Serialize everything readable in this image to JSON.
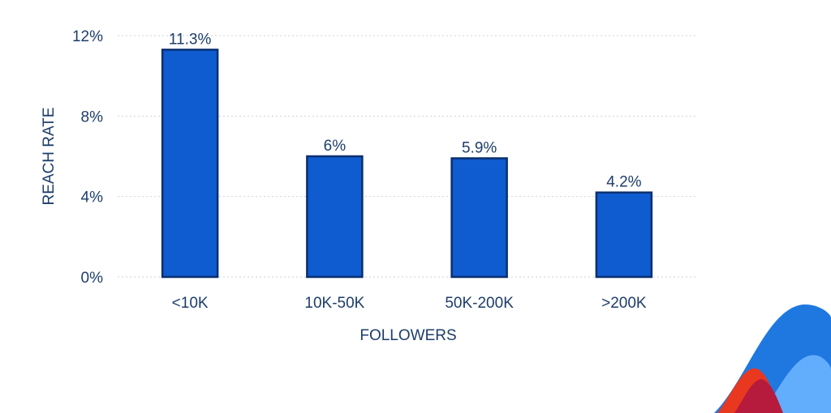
{
  "chart_data": {
    "type": "bar",
    "title": "",
    "xlabel": "FOLLOWERS",
    "ylabel": "REACH RATE",
    "categories": [
      "<10K",
      "10K-50K",
      "50K-200K",
      ">200K"
    ],
    "values": [
      11.3,
      6,
      5.9,
      4.2
    ],
    "value_labels": [
      "11.3%",
      "6%",
      "5.9%",
      "4.2%"
    ],
    "ylim": [
      0,
      12
    ],
    "yticks": [
      {
        "value": 0,
        "label": "0%"
      },
      {
        "value": 4,
        "label": "4%"
      },
      {
        "value": 8,
        "label": "8%"
      },
      {
        "value": 12,
        "label": "12%"
      }
    ],
    "grid": true,
    "bar_color": "#0f5bd0",
    "bar_outline_color": "#0b2f6e",
    "text_color": "#1d3d6b"
  },
  "decoration": {
    "colors": [
      "#1f78e0",
      "#6ab4ff",
      "#e8381f",
      "#b0173f"
    ]
  }
}
